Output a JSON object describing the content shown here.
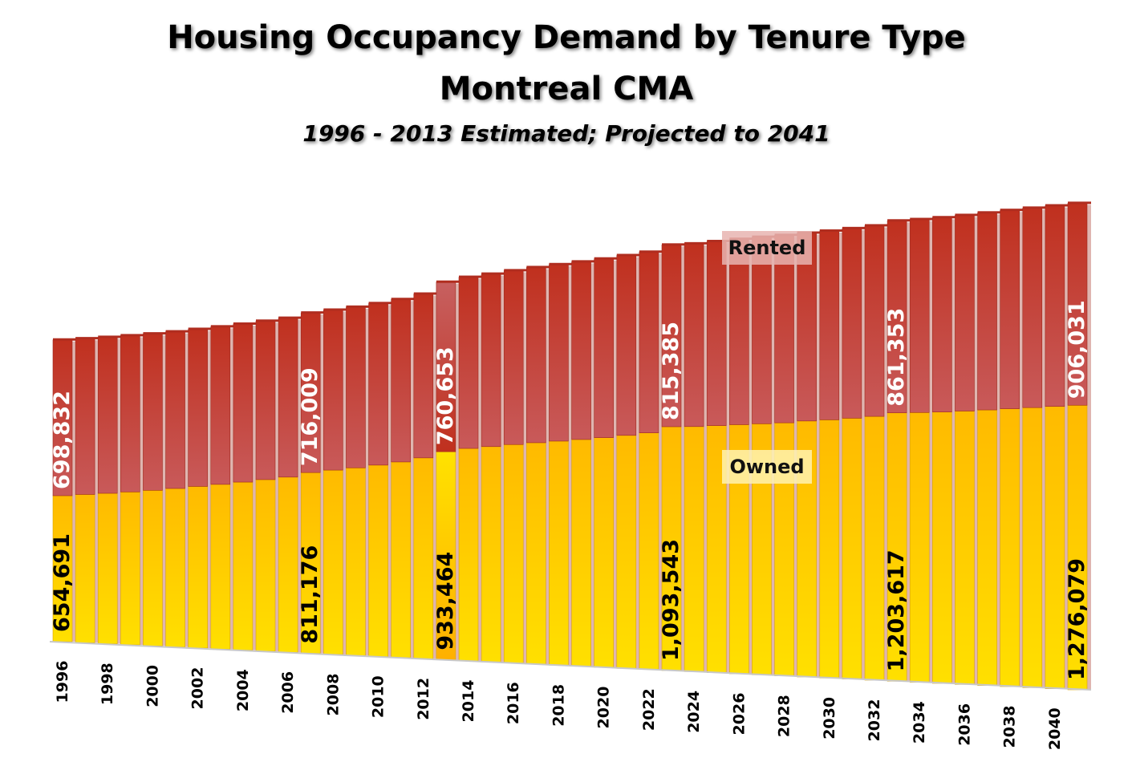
{
  "chart_data": {
    "type": "bar",
    "stacked": true,
    "title": "Housing Occupancy Demand by Tenure Type",
    "title_line2": "Montreal CMA",
    "subtitle": "1996 - 2013 Estimated; Projected to 2041",
    "x": [
      1996,
      1997,
      1998,
      1999,
      2000,
      2001,
      2002,
      2003,
      2004,
      2005,
      2006,
      2007,
      2008,
      2009,
      2010,
      2011,
      2012,
      2013,
      2014,
      2015,
      2016,
      2017,
      2018,
      2019,
      2020,
      2021,
      2022,
      2023,
      2024,
      2025,
      2026,
      2027,
      2028,
      2029,
      2030,
      2031,
      2032,
      2033,
      2034,
      2035,
      2036,
      2037,
      2038,
      2039,
      2040,
      2041
    ],
    "x_tick_labels": [
      "1996",
      "1998",
      "2000",
      "2002",
      "2004",
      "2006",
      "2008",
      "2010",
      "2012",
      "2014",
      "2016",
      "2018",
      "2020",
      "2022",
      "2024",
      "2026",
      "2028",
      "2030",
      "2032",
      "2034",
      "2036",
      "2038",
      "2040"
    ],
    "highlight_year": 2013,
    "series": [
      {
        "name": "Owned",
        "color": "#FFD400",
        "values": [
          654691,
          665000,
          675000,
          686000,
          698000,
          711000,
          725000,
          739000,
          754000,
          770000,
          786000,
          811176,
          827000,
          842000,
          859000,
          878000,
          901000,
          933464,
          953000,
          966000,
          980000,
          993000,
          1005000,
          1017000,
          1030000,
          1045000,
          1061000,
          1093543,
          1099000,
          1108000,
          1117000,
          1126000,
          1135000,
          1148000,
          1158000,
          1170000,
          1183000,
          1203617,
          1210000,
          1217000,
          1226000,
          1236000,
          1246000,
          1256000,
          1266000,
          1276079
        ]
      },
      {
        "name": "Rented",
        "color": "#C0392B",
        "values": [
          698832,
          699000,
          700000,
          701000,
          702000,
          703000,
          705000,
          707000,
          709000,
          711000,
          713000,
          716009,
          718000,
          721000,
          725000,
          729000,
          735000,
          760653,
          768000,
          774000,
          780000,
          786000,
          792000,
          797000,
          802000,
          807000,
          811000,
          815385,
          820000,
          826000,
          832000,
          837000,
          841000,
          843000,
          847000,
          851000,
          855000,
          861353,
          866000,
          872000,
          878000,
          884000,
          890000,
          895000,
          900000,
          906031
        ]
      }
    ],
    "data_labels": [
      {
        "series": "Rented",
        "year": 1996,
        "text": "698,832"
      },
      {
        "series": "Rented",
        "year": 2007,
        "text": "716,009"
      },
      {
        "series": "Rented",
        "year": 2013,
        "text": "760,653"
      },
      {
        "series": "Rented",
        "year": 2023,
        "text": "815,385"
      },
      {
        "series": "Rented",
        "year": 2033,
        "text": "861,353"
      },
      {
        "series": "Rented",
        "year": 2041,
        "text": "906,031"
      },
      {
        "series": "Owned",
        "year": 1996,
        "text": "654,691"
      },
      {
        "series": "Owned",
        "year": 2007,
        "text": "811,176"
      },
      {
        "series": "Owned",
        "year": 2013,
        "text": "933,464"
      },
      {
        "series": "Owned",
        "year": 2023,
        "text": "1,093,543"
      },
      {
        "series": "Owned",
        "year": 2033,
        "text": "1,203,617"
      },
      {
        "series": "Owned",
        "year": 2041,
        "text": "1,276,079"
      }
    ],
    "series_labels": {
      "rented": "Rented",
      "owned": "Owned"
    },
    "xlabel": "",
    "ylabel": "",
    "grid": false,
    "ylim": [
      0,
      2200000
    ]
  }
}
